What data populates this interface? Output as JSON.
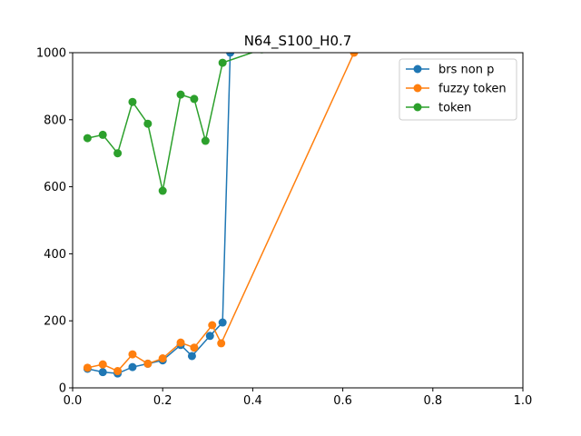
{
  "chart_data": {
    "type": "line",
    "title": "N64_S100_H0.7",
    "xlabel": "",
    "ylabel": "",
    "xlim": [
      0.0,
      1.0
    ],
    "ylim": [
      0,
      1000
    ],
    "xticks": [
      "0.0",
      "0.2",
      "0.4",
      "0.6",
      "0.8",
      "1.0"
    ],
    "yticks": [
      "0",
      "200",
      "400",
      "600",
      "800",
      "1000"
    ],
    "grid": false,
    "legend_position": "top-right",
    "series": [
      {
        "name": "brs non p",
        "color": "#1f77b4",
        "x": [
          0.033,
          0.067,
          0.1,
          0.133,
          0.167,
          0.2,
          0.24,
          0.265,
          0.305,
          0.333,
          0.35
        ],
        "y": [
          57,
          47,
          43,
          62,
          72,
          82,
          128,
          95,
          155,
          195,
          1000
        ]
      },
      {
        "name": "fuzzy token",
        "color": "#ff7f0e",
        "x": [
          0.033,
          0.067,
          0.1,
          0.133,
          0.167,
          0.2,
          0.24,
          0.27,
          0.31,
          0.33,
          0.625
        ],
        "y": [
          60,
          70,
          50,
          100,
          72,
          88,
          135,
          120,
          187,
          133,
          1000
        ]
      },
      {
        "name": "token",
        "color": "#2ca02c",
        "x": [
          0.033,
          0.067,
          0.1,
          0.133,
          0.167,
          0.2,
          0.24,
          0.27,
          0.295,
          0.333,
          0.42
        ],
        "y": [
          745,
          755,
          700,
          853,
          788,
          588,
          875,
          862,
          737,
          970,
          1010
        ]
      }
    ]
  }
}
